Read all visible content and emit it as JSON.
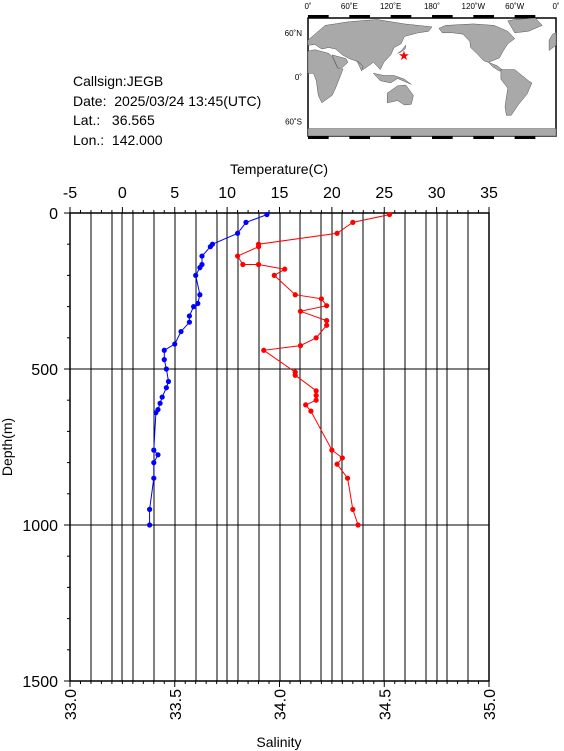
{
  "info": {
    "callsign": "Callsign:JEGB",
    "date": "Date:  2025/03/24 13:45(UTC)",
    "lat": "Lat.:   36.565",
    "lon": "Lon.:  142.000"
  },
  "map": {
    "lon_labels": [
      "0˚",
      "60˚E",
      "120˚E",
      "180˚",
      "120˚W",
      "60˚W",
      "0˚"
    ],
    "lat_labels": [
      "60˚N",
      "0˚",
      "60˚S"
    ],
    "marker": "★",
    "colors": {
      "land": "#a9a9a9",
      "ocean": "#ffffff",
      "marker": "#ff0000"
    }
  },
  "chart_data": {
    "type": "line",
    "title": "",
    "x_top": {
      "label": "Temperature(C)",
      "ticks": [
        "-5",
        "0",
        "5",
        "10",
        "15",
        "20",
        "25",
        "30",
        "35"
      ],
      "range": [
        -5,
        35
      ]
    },
    "x_bottom": {
      "label": "Salinity",
      "ticks": [
        "33.0",
        "33.5",
        "34.0",
        "34.5",
        "35.0"
      ],
      "range": [
        33.0,
        35.0
      ]
    },
    "y": {
      "label": "Depth(m)",
      "ticks": [
        "0",
        "500",
        "1000",
        "1500"
      ],
      "range": [
        0,
        1500
      ],
      "inverted": true
    },
    "grid": true,
    "series": [
      {
        "axis": "temperature",
        "color": "#ff0000",
        "points": [
          [
            25.5,
            5
          ],
          [
            22.0,
            30
          ],
          [
            20.5,
            65
          ],
          [
            13.0,
            100
          ],
          [
            13.0,
            108
          ],
          [
            11.0,
            138
          ],
          [
            11.5,
            165
          ],
          [
            13.0,
            165
          ],
          [
            15.5,
            180
          ],
          [
            14.5,
            200
          ],
          [
            16.5,
            262
          ],
          [
            19.0,
            275
          ],
          [
            19.5,
            297
          ],
          [
            17.0,
            315
          ],
          [
            19.5,
            345
          ],
          [
            19.5,
            360
          ],
          [
            18.5,
            400
          ],
          [
            17.0,
            425
          ],
          [
            13.5,
            440
          ],
          [
            16.5,
            510
          ],
          [
            16.5,
            520
          ],
          [
            18.5,
            570
          ],
          [
            18.5,
            585
          ],
          [
            18.5,
            600
          ],
          [
            17.5,
            615
          ],
          [
            18.0,
            635
          ],
          [
            20.0,
            760
          ],
          [
            21.0,
            785
          ],
          [
            20.5,
            805
          ],
          [
            21.5,
            850
          ],
          [
            22.0,
            950
          ],
          [
            22.5,
            1000
          ]
        ]
      },
      {
        "axis": "salinity",
        "color": "#0000ff",
        "points": [
          [
            33.94,
            5
          ],
          [
            33.84,
            30
          ],
          [
            33.8,
            65
          ],
          [
            33.68,
            100
          ],
          [
            33.67,
            108
          ],
          [
            33.63,
            138
          ],
          [
            33.63,
            165
          ],
          [
            33.62,
            175
          ],
          [
            33.6,
            200
          ],
          [
            33.62,
            262
          ],
          [
            33.61,
            290
          ],
          [
            33.59,
            300
          ],
          [
            33.57,
            330
          ],
          [
            33.57,
            350
          ],
          [
            33.53,
            380
          ],
          [
            33.5,
            420
          ],
          [
            33.45,
            440
          ],
          [
            33.45,
            470
          ],
          [
            33.46,
            500
          ],
          [
            33.47,
            540
          ],
          [
            33.46,
            560
          ],
          [
            33.44,
            590
          ],
          [
            33.43,
            610
          ],
          [
            33.42,
            630
          ],
          [
            33.41,
            640
          ],
          [
            33.4,
            760
          ],
          [
            33.42,
            775
          ],
          [
            33.4,
            800
          ],
          [
            33.4,
            850
          ],
          [
            33.38,
            950
          ],
          [
            33.38,
            1000
          ]
        ]
      }
    ]
  }
}
